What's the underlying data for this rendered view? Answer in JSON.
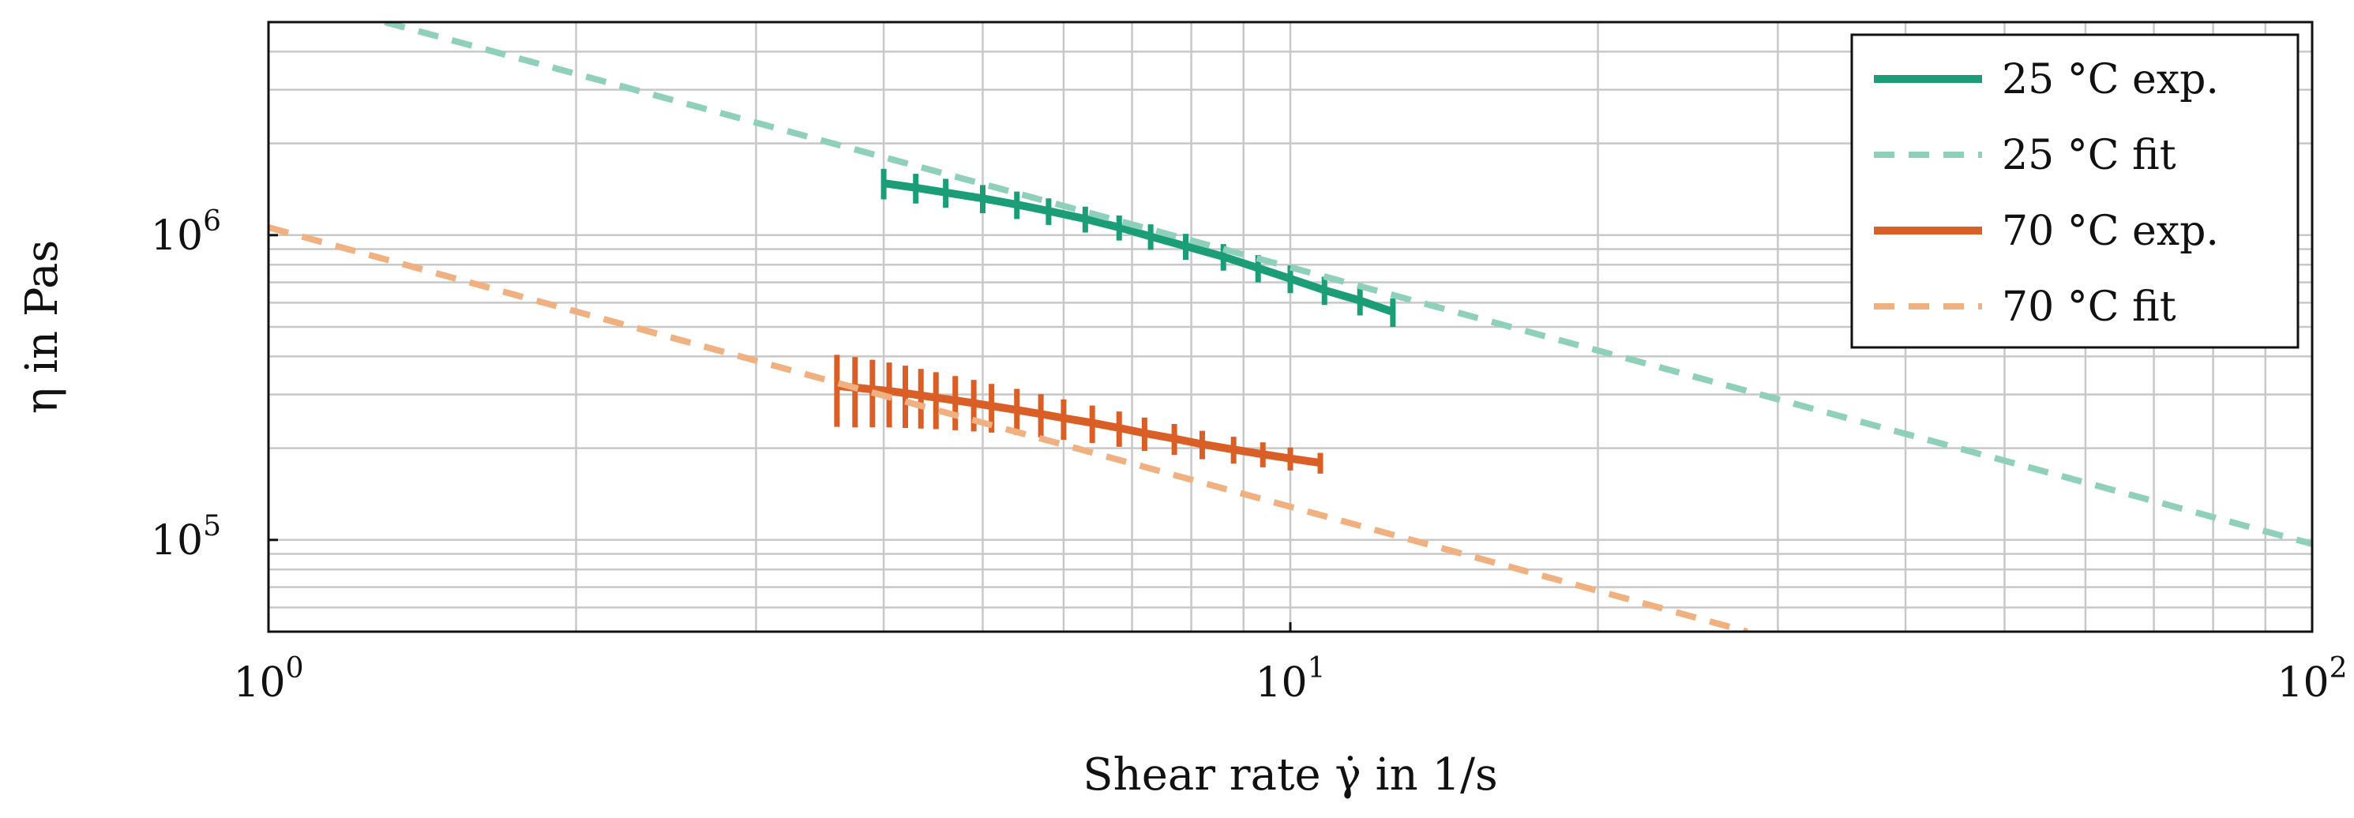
{
  "chart_data": {
    "type": "line",
    "title": "",
    "xlabel": "Shear rate γ̇ in 1/s",
    "ylabel": "η in Pas",
    "xscale": "log",
    "yscale": "log",
    "xlim": [
      1,
      100
    ],
    "ylim": [
      50000,
      5000000
    ],
    "grid": true,
    "legend_position": "top-right",
    "x_ticks": [
      {
        "base": "10",
        "exp": "0",
        "value": 1
      },
      {
        "base": "10",
        "exp": "1",
        "value": 10
      },
      {
        "base": "10",
        "exp": "2",
        "value": 100
      }
    ],
    "y_ticks": [
      {
        "base": "10",
        "exp": "5",
        "value": 100000
      },
      {
        "base": "10",
        "exp": "6",
        "value": 1000000
      }
    ],
    "series": [
      {
        "name": "25 °C exp.",
        "style": "solid",
        "color": "#1b9e77",
        "error_bars": true,
        "x": [
          4.0,
          4.3,
          4.6,
          5.0,
          5.4,
          5.8,
          6.3,
          6.8,
          7.3,
          7.9,
          8.6,
          9.3,
          10.0,
          10.8,
          11.7,
          12.6
        ],
        "y": [
          1480000,
          1430000,
          1380000,
          1320000,
          1260000,
          1200000,
          1130000,
          1060000,
          990000,
          920000,
          850000,
          780000,
          720000,
          660000,
          610000,
          560000
        ],
        "err": [
          170000,
          160000,
          150000,
          140000,
          130000,
          120000,
          110000,
          100000,
          95000,
          90000,
          85000,
          80000,
          75000,
          70000,
          65000,
          60000
        ]
      },
      {
        "name": "25 °C fit",
        "style": "dashed",
        "color": "#8ed0b9",
        "x": [
          1.3,
          100
        ],
        "y": [
          5000000,
          97000
        ]
      },
      {
        "name": "70 °C exp.",
        "style": "solid",
        "color": "#d95f27",
        "error_bars": true,
        "x": [
          3.6,
          3.75,
          3.9,
          4.05,
          4.2,
          4.35,
          4.5,
          4.7,
          4.9,
          5.1,
          5.4,
          5.7,
          6.0,
          6.4,
          6.8,
          7.2,
          7.7,
          8.2,
          8.8,
          9.4,
          10.0,
          10.7
        ],
        "y": [
          320000,
          316000,
          312000,
          308000,
          303000,
          298000,
          293000,
          287000,
          281000,
          275000,
          267000,
          259000,
          251000,
          242000,
          233000,
          224000,
          215000,
          206000,
          198000,
          191000,
          185000,
          179000
        ],
        "err": [
          85000,
          82000,
          78000,
          74000,
          70000,
          66000,
          62000,
          58000,
          54000,
          50000,
          46000,
          42000,
          38000,
          34000,
          31000,
          28000,
          25000,
          22000,
          20000,
          18000,
          16000,
          14000
        ]
      },
      {
        "name": "70 °C fit",
        "style": "dashed",
        "color": "#f0b07f",
        "x": [
          1,
          28
        ],
        "y": [
          1060000,
          50000
        ]
      }
    ]
  }
}
